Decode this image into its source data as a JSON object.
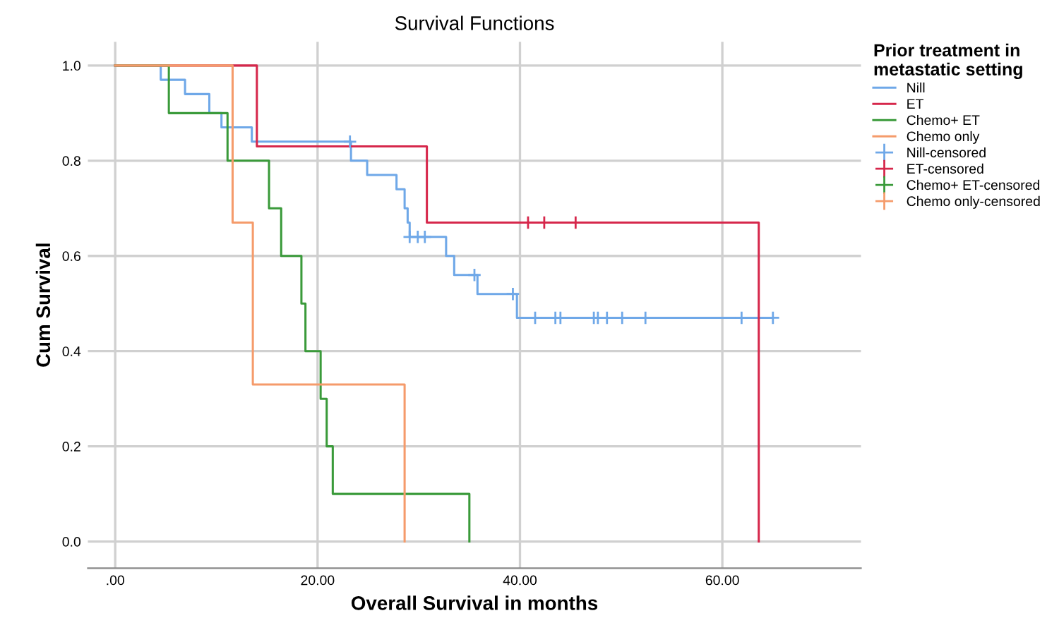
{
  "chart_data": {
    "type": "step",
    "title": "Survival Functions",
    "xlabel": "Overall Survival in months",
    "ylabel": "Cum Survival",
    "legend_title": "Prior treatment in\nmetastatic setting",
    "xlim": [
      -2.7,
      73.7
    ],
    "ylim": [
      -0.056,
      1.05
    ],
    "xticks": [
      {
        "value": 0,
        "label": ".00"
      },
      {
        "value": 20,
        "label": "20.00"
      },
      {
        "value": 40,
        "label": "40.00"
      },
      {
        "value": 60,
        "label": "60.00"
      }
    ],
    "yticks": [
      {
        "value": 0,
        "label": "0.0"
      },
      {
        "value": 0.2,
        "label": "0.2"
      },
      {
        "value": 0.4,
        "label": "0.4"
      },
      {
        "value": 0.6,
        "label": "0.6"
      },
      {
        "value": 0.8,
        "label": "0.8"
      },
      {
        "value": 1.0,
        "label": "1.0"
      }
    ],
    "grid": true,
    "legend": "right",
    "series": [
      {
        "name": "Nill",
        "color": "#6fa8e8",
        "marker": "none",
        "x": [
          0,
          4.5,
          6.9,
          9.3,
          10.5,
          13.5,
          23.3,
          24.9,
          27.8,
          28.6,
          28.9,
          29.1,
          32.7,
          33.5,
          35.8,
          39.7,
          65.0
        ],
        "values": [
          1.0,
          0.97,
          0.94,
          0.9,
          0.87,
          0.84,
          0.8,
          0.77,
          0.74,
          0.7,
          0.67,
          0.64,
          0.6,
          0.56,
          0.52,
          0.47,
          0.47
        ]
      },
      {
        "name": "ET",
        "color": "#d6274b",
        "marker": "none",
        "x": [
          0,
          14.0,
          30.8,
          63.6
        ],
        "values": [
          1.0,
          0.83,
          0.67,
          0.0
        ]
      },
      {
        "name": "Chemo+ ET",
        "color": "#3a9a3a",
        "marker": "none",
        "x": [
          0,
          5.3,
          11.1,
          15.2,
          16.4,
          18.4,
          18.8,
          20.3,
          20.9,
          21.5,
          35.0
        ],
        "values": [
          1.0,
          0.9,
          0.8,
          0.7,
          0.6,
          0.5,
          0.4,
          0.3,
          0.2,
          0.1,
          0.0
        ]
      },
      {
        "name": "Chemo only",
        "color": "#f59b6b",
        "marker": "none",
        "x": [
          0,
          11.6,
          13.6,
          28.6
        ],
        "values": [
          1.0,
          0.67,
          0.33,
          0.0
        ]
      },
      {
        "name": "Nill-censored",
        "type": "scatter",
        "color": "#6fa8e8",
        "marker": "cross",
        "x": [
          23.2,
          29.1,
          29.9,
          30.6,
          35.5,
          39.3,
          41.5,
          43.5,
          44.0,
          47.3,
          47.7,
          48.6,
          50.1,
          52.4,
          61.9,
          65.0
        ],
        "values": [
          0.84,
          0.64,
          0.64,
          0.64,
          0.56,
          0.52,
          0.47,
          0.47,
          0.47,
          0.47,
          0.47,
          0.47,
          0.47,
          0.47,
          0.47,
          0.47
        ]
      },
      {
        "name": "ET-censored",
        "type": "scatter",
        "color": "#d6274b",
        "marker": "cross",
        "x": [
          40.8,
          42.4,
          45.5
        ],
        "values": [
          0.67,
          0.67,
          0.67
        ]
      },
      {
        "name": "Chemo+ ET-censored",
        "type": "scatter",
        "color": "#3a9a3a",
        "marker": "cross"
      },
      {
        "name": "Chemo only-censored",
        "type": "scatter",
        "color": "#f59b6b",
        "marker": "cross"
      }
    ]
  }
}
